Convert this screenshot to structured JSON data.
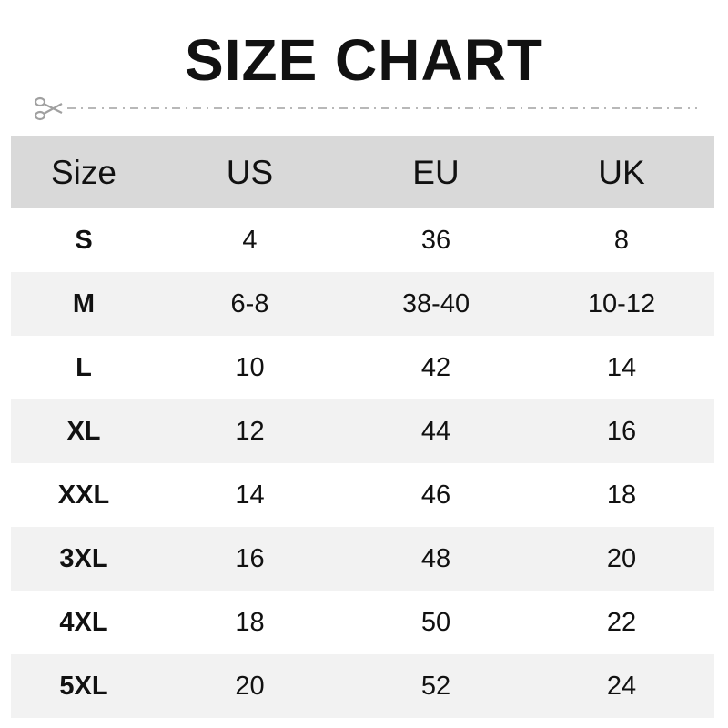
{
  "title": "SIZE CHART",
  "colors": {
    "header_bg": "#d9d9d9",
    "alt_row_bg": "#f2f2f2",
    "cut_line": "#a0a0a0"
  },
  "icons": {
    "cut": "scissors-icon"
  },
  "table": {
    "headers": [
      "Size",
      "US",
      "EU",
      "UK"
    ],
    "rows": [
      [
        "S",
        "4",
        "36",
        "8"
      ],
      [
        "M",
        "6-8",
        "38-40",
        "10-12"
      ],
      [
        "L",
        "10",
        "42",
        "14"
      ],
      [
        "XL",
        "12",
        "44",
        "16"
      ],
      [
        "XXL",
        "14",
        "46",
        "18"
      ],
      [
        "3XL",
        "16",
        "48",
        "20"
      ],
      [
        "4XL",
        "18",
        "50",
        "22"
      ],
      [
        "5XL",
        "20",
        "52",
        "24"
      ]
    ]
  }
}
